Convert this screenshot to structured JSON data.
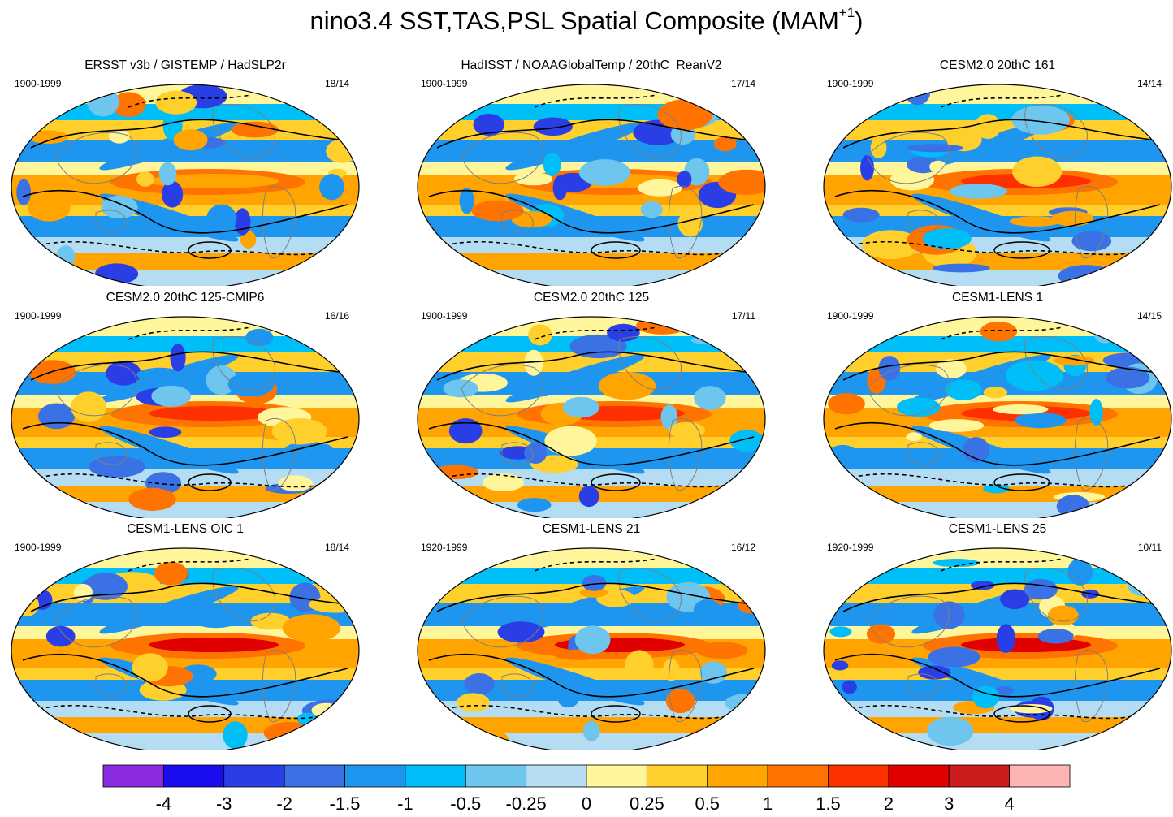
{
  "title": {
    "prefix": "nino3.4 SST,TAS,PSL Spatial Composite (MAM",
    "superscript": "+1",
    "suffix": ")"
  },
  "chart_data": {
    "type": "heatmap",
    "description_units": "composite anomaly",
    "panels": [
      {
        "title": "ERSST v3b / GISTEMP / HadSLP2r",
        "years": "1900-1999",
        "ratio": "18/14"
      },
      {
        "title": "HadISST / NOAAGlobalTemp / 20thC_ReanV2",
        "years": "1900-1999",
        "ratio": "17/14"
      },
      {
        "title": "CESM2.0 20thC 161",
        "years": "1900-1999",
        "ratio": "14/14"
      },
      {
        "title": "CESM2.0 20thC 125-CMIP6",
        "years": "1900-1999",
        "ratio": "16/16"
      },
      {
        "title": "CESM2.0 20thC 125",
        "years": "1900-1999",
        "ratio": "17/11"
      },
      {
        "title": "CESM1-LENS 1",
        "years": "1900-1999",
        "ratio": "14/15"
      },
      {
        "title": "CESM1-LENS OIC 1",
        "years": "1900-1999",
        "ratio": "18/14"
      },
      {
        "title": "CESM1-LENS 21",
        "years": "1920-1999",
        "ratio": "16/12"
      },
      {
        "title": "CESM1-LENS 25",
        "years": "1920-1999",
        "ratio": "10/11"
      }
    ],
    "colorbar": {
      "colors": [
        "#8a2be2",
        "#1a0ef0",
        "#2a3ee6",
        "#3a72e6",
        "#1e96f0",
        "#00bef8",
        "#6ec5ee",
        "#b4dcf2",
        "#fff59a",
        "#ffd02c",
        "#ffa400",
        "#ff7400",
        "#ff3000",
        "#e00000",
        "#cc1c1c",
        "#ffb4b4"
      ],
      "ticks": [
        "-4",
        "-3",
        "-2",
        "-1.5",
        "-1",
        "-0.5",
        "-0.25",
        "0",
        "0.25",
        "0.5",
        "1",
        "1.5",
        "2",
        "3",
        "4"
      ]
    }
  }
}
